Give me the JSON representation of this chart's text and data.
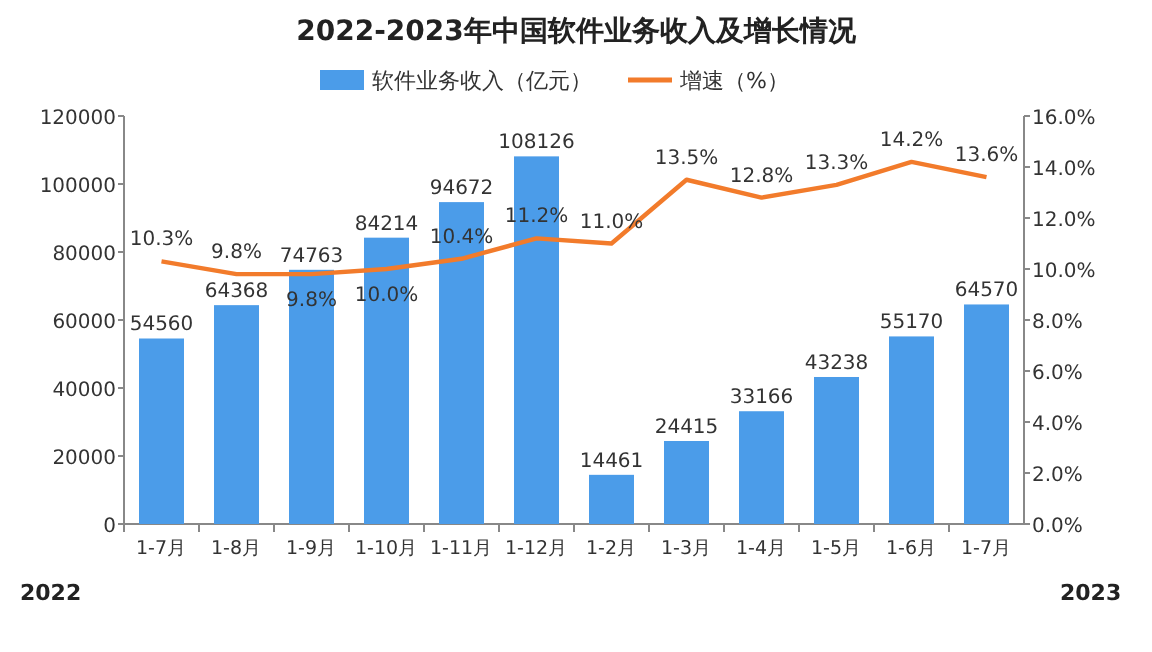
{
  "chart_data": {
    "type": "bar",
    "title": "2022-2023年中国软件业务收入及增长情况",
    "categories": [
      "1-7月",
      "1-8月",
      "1-9月",
      "1-10月",
      "1-11月",
      "1-12月",
      "1-2月",
      "1-3月",
      "1-4月",
      "1-5月",
      "1-6月",
      "1-7月"
    ],
    "series": [
      {
        "name": "软件业务收入（亿元）",
        "color": "#4b9ce9",
        "values": [
          54560,
          64368,
          74763,
          84214,
          94672,
          108126,
          14461,
          24415,
          33166,
          43238,
          55170,
          64570
        ],
        "value_labels": [
          "54560",
          "64368",
          "74763",
          "84214",
          "94672",
          "108126",
          "14461",
          "24415",
          "33166",
          "43238",
          "55170",
          "64570"
        ]
      },
      {
        "name": "增速（%）",
        "type": "line",
        "axis": "y2",
        "color": "#f27b2b",
        "values": [
          10.3,
          9.8,
          9.8,
          10.0,
          10.4,
          11.2,
          11.0,
          13.5,
          12.8,
          13.3,
          14.2,
          13.6
        ],
        "value_labels": [
          "10.3%",
          "9.8%",
          "9.8%",
          "10.0%",
          "10.4%",
          "11.2%",
          "11.0%",
          "13.5%",
          "12.8%",
          "13.3%",
          "14.2%",
          "13.6%"
        ]
      }
    ],
    "ylim": [
      0,
      120000
    ],
    "yticks": [
      0,
      20000,
      40000,
      60000,
      80000,
      100000,
      120000
    ],
    "y2lim": [
      0,
      16
    ],
    "y2ticks": [
      {
        "value": 0,
        "label": "0.0%"
      },
      {
        "value": 2,
        "label": "2.0%"
      },
      {
        "value": 4,
        "label": "4.0%"
      },
      {
        "value": 6,
        "label": "6.0%"
      },
      {
        "value": 8,
        "label": "8.0%"
      },
      {
        "value": 10,
        "label": "10.0%"
      },
      {
        "value": 12,
        "label": "12.0%"
      },
      {
        "value": 14,
        "label": "14.0%"
      },
      {
        "value": 16,
        "label": "16.0%"
      }
    ],
    "grid": false,
    "legend": "top",
    "marker": "none",
    "line_style": "solid",
    "annotations": [
      "2022",
      "2023"
    ]
  }
}
